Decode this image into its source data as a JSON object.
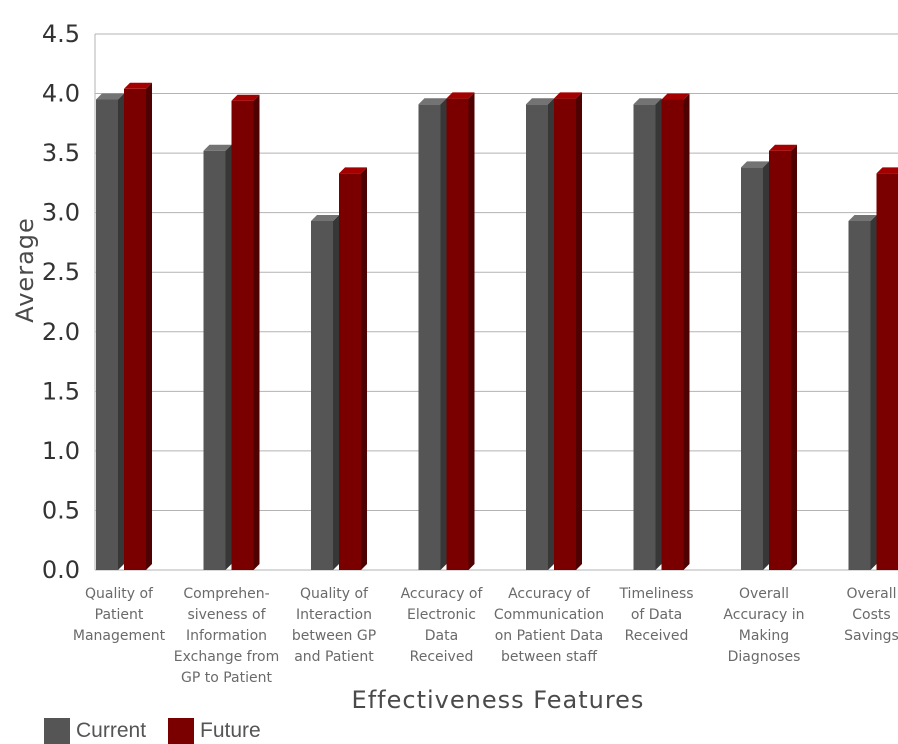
{
  "chart_data": {
    "type": "bar",
    "title": "",
    "xlabel": "Effectiveness Features",
    "ylabel": "Average",
    "ylim": [
      0,
      4.5
    ],
    "yticks": [
      "0.0",
      "0.5",
      "1.0",
      "1.5",
      "2.0",
      "2.5",
      "3.0",
      "3.5",
      "4.0",
      "4.5"
    ],
    "grid": true,
    "legend_position": "bottom-left",
    "categories": [
      [
        "Quality of",
        "Patient",
        "Management"
      ],
      [
        "Comprehen-",
        "siveness of",
        "Information",
        "Exchange from",
        "GP to Patient"
      ],
      [
        "Quality of",
        "Interaction",
        "between GP",
        "and Patient"
      ],
      [
        "Accuracy of",
        "Electronic",
        "Data",
        "Received"
      ],
      [
        "Accuracy of",
        "Communication",
        "on Patient Data",
        "between staff"
      ],
      [
        "Timeliness",
        "of Data",
        "Received"
      ],
      [
        "Overall",
        "Accuracy in",
        "Making",
        "Diagnoses"
      ],
      [
        "Overall",
        "Costs",
        "Savings"
      ]
    ],
    "series": [
      {
        "name": "Current",
        "color": "#555555",
        "values": [
          3.95,
          3.52,
          2.93,
          3.91,
          3.91,
          3.91,
          3.38,
          2.93
        ]
      },
      {
        "name": "Future",
        "color": "#7a0000",
        "values": [
          4.04,
          3.94,
          3.33,
          3.96,
          3.96,
          3.95,
          3.52,
          3.33
        ]
      }
    ]
  }
}
